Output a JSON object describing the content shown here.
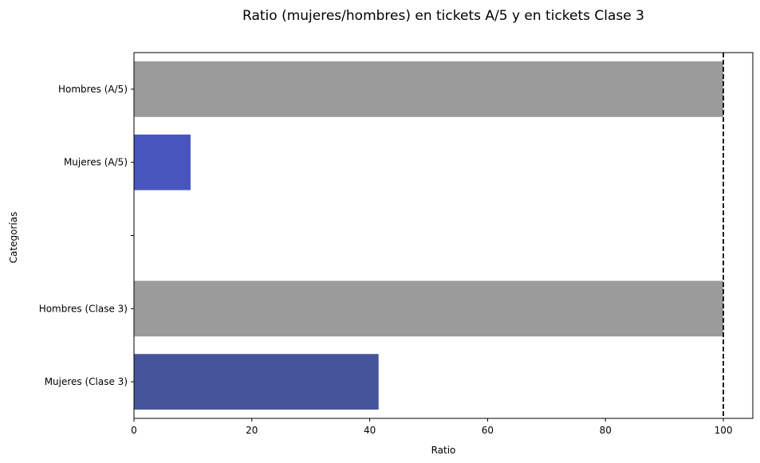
{
  "chart_data": {
    "type": "bar",
    "orientation": "horizontal",
    "title": "Ratio (mujeres/hombres) en tickets A/5 y en tickets Clase 3",
    "xlabel": "Ratio",
    "ylabel": "Categorías",
    "xlim": [
      0,
      105
    ],
    "x_ticks": [
      0,
      20,
      40,
      60,
      80,
      100
    ],
    "categories": [
      "Mujeres (Clase 3)",
      "Hombres (Clase 3)",
      "",
      "Mujeres (A/5)",
      "Hombres (A/5)"
    ],
    "values": [
      41.5,
      100,
      null,
      9.6,
      100
    ],
    "colors": [
      "#44559b",
      "#9b9b9b",
      null,
      "#4755bd",
      "#9b9b9b"
    ],
    "reference_line": {
      "x": 100,
      "style": "dashed",
      "color": "#000000"
    },
    "grid": false,
    "legend": "none"
  }
}
